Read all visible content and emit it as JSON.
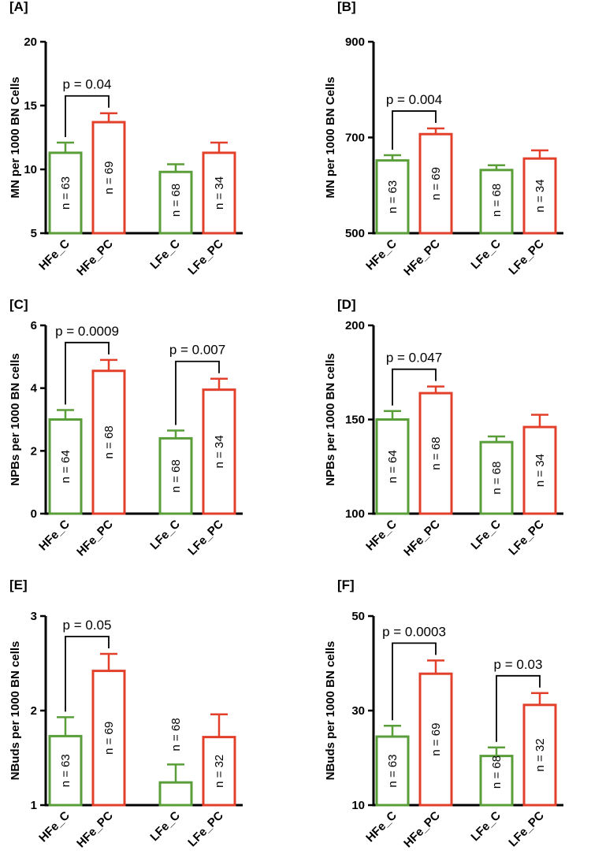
{
  "colors": {
    "control": "#5a9e3a",
    "patient": "#e2402b",
    "axis": "#000000"
  },
  "chart_data": [
    {
      "panel": "[A]",
      "type": "bar",
      "ylabel": "MN per 1000 BN Cells",
      "ylim": [
        5,
        20
      ],
      "yticks": [
        "5",
        "10",
        "15",
        "20"
      ],
      "categories": [
        "HFe_C",
        "HFe_PC",
        "LFe_C",
        "LFe_PC"
      ],
      "values": [
        11.3,
        13.7,
        9.8,
        11.3
      ],
      "errors": [
        0.8,
        0.7,
        0.6,
        0.8
      ],
      "n_labels": [
        "n = 63",
        "n = 69",
        "n = 68",
        "n = 34"
      ],
      "n_above": [
        false,
        false,
        false,
        false
      ],
      "comparisons": [
        {
          "from": 0,
          "to": 1,
          "label": "p = 0.04"
        }
      ]
    },
    {
      "panel": "[B]",
      "type": "bar",
      "ylabel": "MN per 1000 BN Cells",
      "ylim": [
        500,
        900
      ],
      "yticks": [
        "500",
        "700",
        "900"
      ],
      "categories": [
        "HFe_C",
        "HFe_PC",
        "LFe_C",
        "LFe_PC"
      ],
      "values": [
        652,
        707,
        632,
        656
      ],
      "errors": [
        11,
        12,
        10,
        17
      ],
      "n_labels": [
        "n = 63",
        "n = 69",
        "n = 68",
        "n = 34"
      ],
      "n_above": [
        false,
        false,
        false,
        false
      ],
      "comparisons": [
        {
          "from": 0,
          "to": 1,
          "label": "p = 0.004"
        }
      ]
    },
    {
      "panel": "[C]",
      "type": "bar",
      "ylabel": "NPBs per 1000 BN cells",
      "ylim": [
        0,
        6
      ],
      "yticks": [
        "0",
        "2",
        "4",
        "6"
      ],
      "categories": [
        "HFe_C",
        "HFe_PC",
        "LFe_C",
        "LFe_PC"
      ],
      "values": [
        3.0,
        4.55,
        2.4,
        3.95
      ],
      "errors": [
        0.3,
        0.35,
        0.25,
        0.35
      ],
      "n_labels": [
        "n = 64",
        "n = 68",
        "n = 68",
        "n = 34"
      ],
      "n_above": [
        false,
        false,
        false,
        false
      ],
      "comparisons": [
        {
          "from": 0,
          "to": 1,
          "label": "p = 0.0009"
        },
        {
          "from": 2,
          "to": 3,
          "label": "p = 0.007"
        }
      ]
    },
    {
      "panel": "[D]",
      "type": "bar",
      "ylabel": "NPBs per 1000 BN cells",
      "ylim": [
        100,
        200
      ],
      "yticks": [
        "100",
        "150",
        "200"
      ],
      "categories": [
        "HFe_C",
        "HFe_PC",
        "LFe_C",
        "LFe_PC"
      ],
      "values": [
        150,
        164,
        138,
        146
      ],
      "errors": [
        4.5,
        3.5,
        3,
        6.5
      ],
      "n_labels": [
        "n = 64",
        "n = 68",
        "n = 68",
        "n = 34"
      ],
      "n_above": [
        false,
        false,
        false,
        false
      ],
      "comparisons": [
        {
          "from": 0,
          "to": 1,
          "label": "p = 0.047"
        }
      ]
    },
    {
      "panel": "[E]",
      "type": "bar",
      "ylabel": "NBuds per 1000 BN cells",
      "ylim": [
        1,
        3
      ],
      "yticks": [
        "1",
        "2",
        "3"
      ],
      "categories": [
        "HFe_C",
        "HFe_PC",
        "LFe_C",
        "LFe_PC"
      ],
      "values": [
        1.73,
        2.42,
        1.24,
        1.72
      ],
      "errors": [
        0.2,
        0.18,
        0.19,
        0.24
      ],
      "n_labels": [
        "n = 63",
        "n = 69",
        "n = 68",
        "n = 32"
      ],
      "n_above": [
        false,
        false,
        true,
        false
      ],
      "comparisons": [
        {
          "from": 0,
          "to": 1,
          "label": "p = 0.05"
        }
      ]
    },
    {
      "panel": "[F]",
      "type": "bar",
      "ylabel": "NBuds per 1000 BN cells",
      "ylim": [
        10,
        50
      ],
      "yticks": [
        "10",
        "30",
        "50"
      ],
      "categories": [
        "HFe_C",
        "HFe_PC",
        "LFe_C",
        "LFe_PC"
      ],
      "values": [
        24.5,
        37.8,
        20.4,
        31.2
      ],
      "errors": [
        2.3,
        2.8,
        1.8,
        2.5
      ],
      "n_labels": [
        "n = 63",
        "n = 69",
        "n = 68",
        "n = 32"
      ],
      "n_above": [
        false,
        false,
        false,
        false
      ],
      "comparisons": [
        {
          "from": 0,
          "to": 1,
          "label": "p = 0.0003"
        },
        {
          "from": 2,
          "to": 3,
          "label": "p = 0.03"
        }
      ]
    }
  ]
}
